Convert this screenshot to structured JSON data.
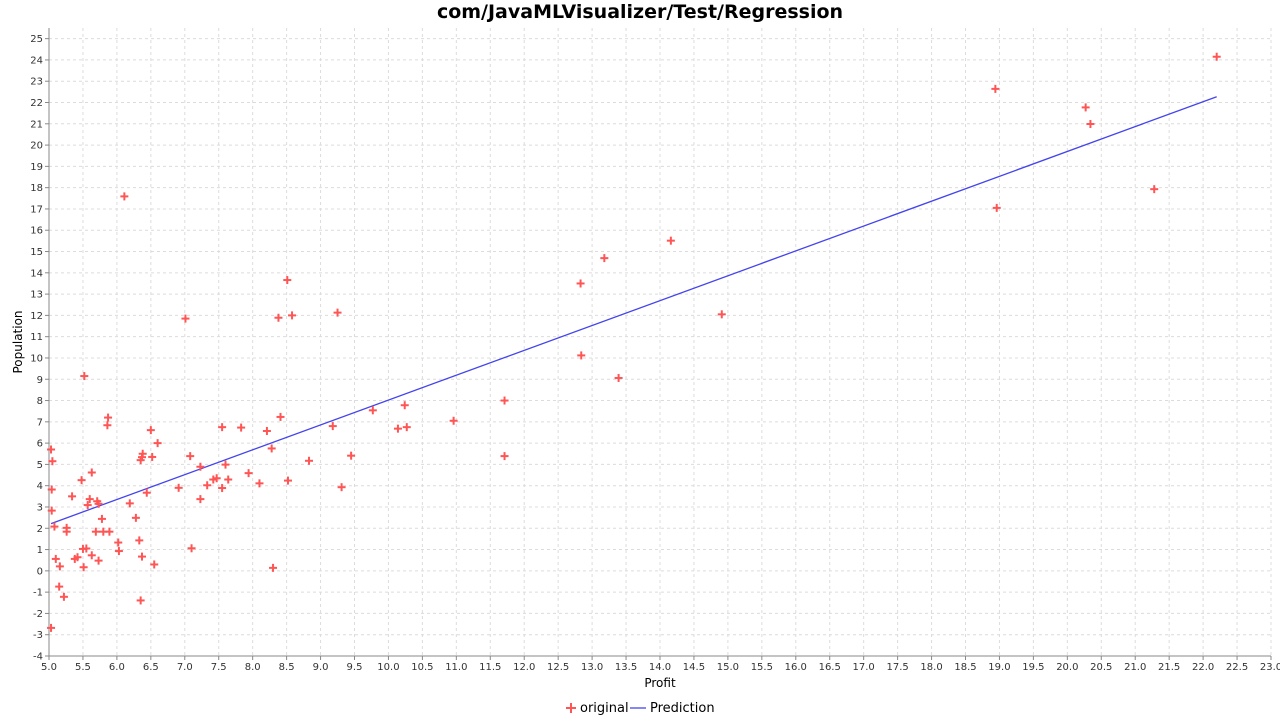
{
  "chart_data": {
    "type": "scatter",
    "title": "com/JavaMLVisualizer/Test/Regression",
    "xlabel": "Profit",
    "ylabel": "Population",
    "xlim": [
      5.0,
      23.0
    ],
    "ylim": [
      -4,
      25.5
    ],
    "x_ticks": [
      "5.0",
      "5.5",
      "6.0",
      "6.5",
      "7.0",
      "7.5",
      "8.0",
      "8.5",
      "9.0",
      "9.5",
      "10.0",
      "10.5",
      "11.0",
      "11.5",
      "12.0",
      "12.5",
      "13.0",
      "13.5",
      "14.0",
      "14.5",
      "15.0",
      "15.5",
      "16.0",
      "16.5",
      "17.0",
      "17.5",
      "18.0",
      "18.5",
      "19.0",
      "19.5",
      "20.0",
      "20.5",
      "21.0",
      "21.5",
      "22.0",
      "22.5",
      "23.0"
    ],
    "y_ticks": [
      "-4",
      "-3",
      "-2",
      "-1",
      "0",
      "1",
      "2",
      "3",
      "4",
      "5",
      "6",
      "7",
      "8",
      "9",
      "10",
      "11",
      "12",
      "13",
      "14",
      "15",
      "16",
      "17",
      "18",
      "19",
      "20",
      "21",
      "22",
      "23",
      "24",
      "25"
    ],
    "grid": true,
    "legend_position": "bottom",
    "colors": {
      "original": "#ff5555",
      "prediction": "#4444ee"
    },
    "series": [
      {
        "name": "original",
        "marker": "plus",
        "points": [
          [
            5.03,
            -2.68
          ],
          [
            5.03,
            5.7
          ],
          [
            5.05,
            5.15
          ],
          [
            5.04,
            3.82
          ],
          [
            5.04,
            2.83
          ],
          [
            5.08,
            2.08
          ],
          [
            5.1,
            0.56
          ],
          [
            5.15,
            -0.74
          ],
          [
            5.16,
            0.21
          ],
          [
            5.22,
            -1.22
          ],
          [
            5.26,
            1.84
          ],
          [
            5.26,
            2.02
          ],
          [
            5.34,
            3.5
          ],
          [
            5.38,
            0.56
          ],
          [
            5.42,
            0.64
          ],
          [
            5.48,
            4.26
          ],
          [
            5.5,
            1.03
          ],
          [
            5.51,
            0.17
          ],
          [
            5.52,
            9.15
          ],
          [
            5.55,
            1.05
          ],
          [
            5.57,
            3.09
          ],
          [
            5.6,
            3.37
          ],
          [
            5.63,
            0.73
          ],
          [
            5.63,
            4.62
          ],
          [
            5.69,
            1.84
          ],
          [
            5.71,
            3.27
          ],
          [
            5.73,
            3.15
          ],
          [
            5.73,
            0.48
          ],
          [
            5.78,
            2.44
          ],
          [
            5.8,
            1.84
          ],
          [
            5.86,
            6.84
          ],
          [
            5.87,
            7.2
          ],
          [
            5.89,
            1.84
          ],
          [
            6.02,
            1.33
          ],
          [
            6.03,
            0.93
          ],
          [
            6.11,
            17.59
          ],
          [
            6.19,
            3.17
          ],
          [
            6.28,
            2.49
          ],
          [
            6.33,
            1.43
          ],
          [
            6.35,
            5.2
          ],
          [
            6.35,
            -1.39
          ],
          [
            6.37,
            0.67
          ],
          [
            6.37,
            5.34
          ],
          [
            6.38,
            5.5
          ],
          [
            6.44,
            3.67
          ],
          [
            6.5,
            6.61
          ],
          [
            6.52,
            5.35
          ],
          [
            6.55,
            0.3
          ],
          [
            6.6,
            6.0
          ],
          [
            6.91,
            3.9
          ],
          [
            7.01,
            11.85
          ],
          [
            7.08,
            5.39
          ],
          [
            7.1,
            1.06
          ],
          [
            7.23,
            4.89
          ],
          [
            7.23,
            3.37
          ],
          [
            7.33,
            4.02
          ],
          [
            7.42,
            4.29
          ],
          [
            7.47,
            4.35
          ],
          [
            7.55,
            6.75
          ],
          [
            7.55,
            3.89
          ],
          [
            7.6,
            4.99
          ],
          [
            7.64,
            4.29
          ],
          [
            7.83,
            6.73
          ],
          [
            7.94,
            4.59
          ],
          [
            8.1,
            4.11
          ],
          [
            8.21,
            6.57
          ],
          [
            8.28,
            5.75
          ],
          [
            8.3,
            0.14
          ],
          [
            8.38,
            11.89
          ],
          [
            8.41,
            7.23
          ],
          [
            8.51,
            13.66
          ],
          [
            8.52,
            4.24
          ],
          [
            8.58,
            12.0
          ],
          [
            8.83,
            5.17
          ],
          [
            9.18,
            6.8
          ],
          [
            9.25,
            12.13
          ],
          [
            9.31,
            3.93
          ],
          [
            9.45,
            5.41
          ],
          [
            9.77,
            7.54
          ],
          [
            10.14,
            6.68
          ],
          [
            10.24,
            7.78
          ],
          [
            10.27,
            6.75
          ],
          [
            10.96,
            7.05
          ],
          [
            11.71,
            8.0
          ],
          [
            11.71,
            5.39
          ],
          [
            12.83,
            13.5
          ],
          [
            12.84,
            10.12
          ],
          [
            13.18,
            14.69
          ],
          [
            13.39,
            9.06
          ],
          [
            14.16,
            15.51
          ],
          [
            14.91,
            12.05
          ],
          [
            18.94,
            22.64
          ],
          [
            18.96,
            17.05
          ],
          [
            20.27,
            21.77
          ],
          [
            20.34,
            20.99
          ],
          [
            21.28,
            17.93
          ],
          [
            22.2,
            24.15
          ]
        ]
      },
      {
        "name": "Prediction",
        "line": [
          [
            5.03,
            2.22
          ],
          [
            22.2,
            22.27
          ]
        ]
      }
    ]
  }
}
